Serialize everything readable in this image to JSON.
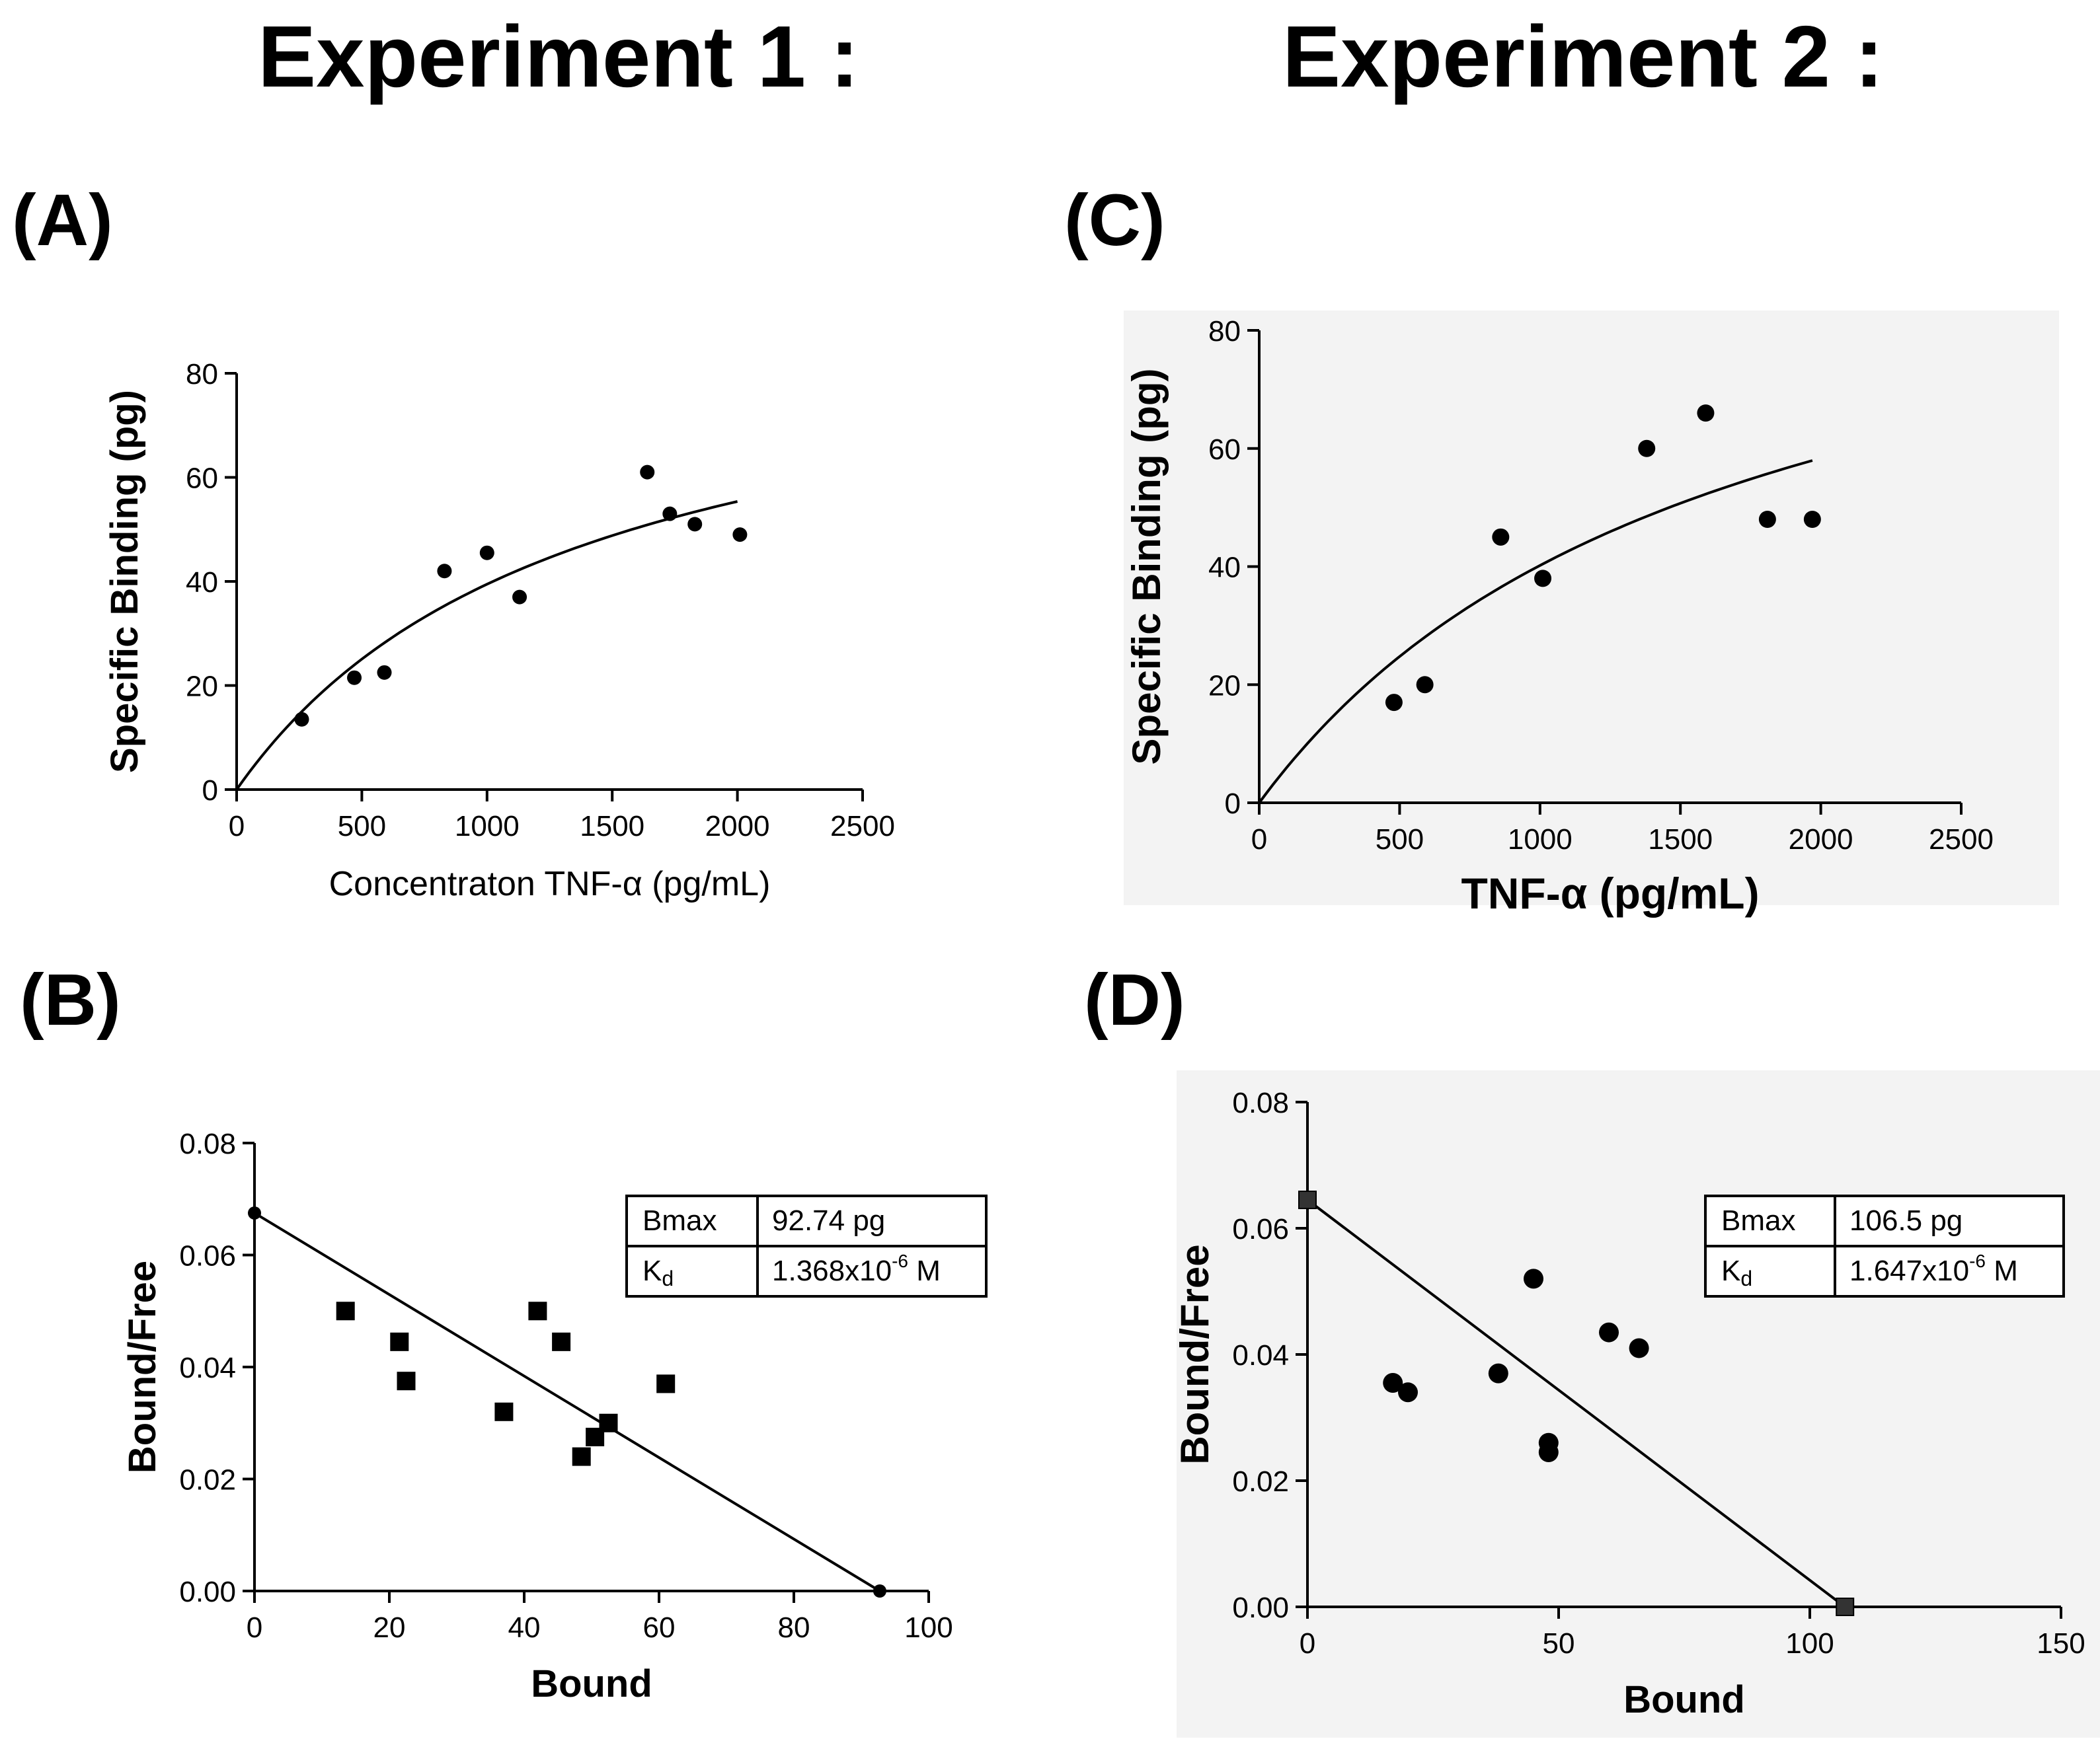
{
  "titles": {
    "exp1": "Experiment 1 :",
    "exp2": "Experiment 2 :"
  },
  "panel_letters": {
    "A": "(A)",
    "B": "(B)",
    "C": "(C)",
    "D": "(D)"
  },
  "colors": {
    "ink": "#000000",
    "panel_bg_exp2": "#f3f3f3",
    "background": "#ffffff"
  },
  "chart_data": [
    {
      "id": "A",
      "type": "scatter",
      "title": "",
      "xlabel": "Concentraton TNF-α (pg/mL)",
      "ylabel": "Specific Binding (pg)",
      "xlim": [
        0,
        2500
      ],
      "ylim": [
        0,
        80
      ],
      "xticks": [
        "0",
        "500",
        "1000",
        "1500",
        "2000",
        "2500"
      ],
      "yticks": [
        "0",
        "20",
        "40",
        "60",
        "80"
      ],
      "points": [
        [
          260,
          13.5
        ],
        [
          470,
          21.5
        ],
        [
          590,
          22.5
        ],
        [
          830,
          42
        ],
        [
          1000,
          45.5
        ],
        [
          1130,
          37
        ],
        [
          1640,
          61
        ],
        [
          1730,
          53
        ],
        [
          1830,
          51
        ],
        [
          2010,
          49
        ]
      ],
      "marker": "circle",
      "fit": {
        "type": "one-site",
        "bmax": 92.74,
        "kd": 1350,
        "x_range": [
          0,
          2000
        ]
      }
    },
    {
      "id": "B",
      "type": "scatter",
      "title": "",
      "xlabel": "Bound",
      "ylabel": "Bound/Free",
      "xlim": [
        0,
        100
      ],
      "ylim": [
        0,
        0.08
      ],
      "xticks": [
        "0",
        "20",
        "40",
        "60",
        "80",
        "100"
      ],
      "yticks": [
        "0.00",
        "0.02",
        "0.04",
        "0.06",
        "0.08"
      ],
      "points": [
        [
          13.5,
          0.05
        ],
        [
          21.5,
          0.0445
        ],
        [
          22.5,
          0.0375
        ],
        [
          37,
          0.032
        ],
        [
          42,
          0.05
        ],
        [
          45.5,
          0.0445
        ],
        [
          48.5,
          0.024
        ],
        [
          50.5,
          0.0275
        ],
        [
          52.5,
          0.03
        ],
        [
          61,
          0.037
        ]
      ],
      "marker": "square",
      "endpoints": [
        [
          0,
          0.0675
        ],
        [
          92.74,
          0.0
        ]
      ],
      "fit": {
        "type": "line",
        "x0": 0,
        "y0": 0.0675,
        "x1": 92.74,
        "y1": 0.0
      },
      "table": {
        "rows": [
          {
            "label": "Bmax",
            "value": "92.74 pg"
          },
          {
            "label": "Kd",
            "value": "1.368x10",
            "sup": "-6",
            "unit": " M"
          }
        ]
      }
    },
    {
      "id": "C",
      "type": "scatter",
      "title": "",
      "xlabel": "TNF-α (pg/mL)",
      "ylabel": "Specific Binding (pg)",
      "xlim": [
        0,
        2500
      ],
      "ylim": [
        0,
        80
      ],
      "xticks": [
        "0",
        "500",
        "1000",
        "1500",
        "2000",
        "2500"
      ],
      "yticks": [
        "0",
        "20",
        "40",
        "60",
        "80"
      ],
      "points": [
        [
          480,
          17
        ],
        [
          590,
          20
        ],
        [
          860,
          45
        ],
        [
          1010,
          38
        ],
        [
          1380,
          60
        ],
        [
          1590,
          66
        ],
        [
          1810,
          48
        ],
        [
          1970,
          48
        ]
      ],
      "marker": "circle",
      "fit": {
        "type": "one-site",
        "bmax": 106.5,
        "kd": 1650,
        "x_range": [
          0,
          1970
        ]
      }
    },
    {
      "id": "D",
      "type": "scatter",
      "title": "",
      "xlabel": "Bound",
      "ylabel": "Bound/Free",
      "xlim": [
        0,
        150
      ],
      "ylim": [
        0,
        0.08
      ],
      "xticks": [
        "0",
        "50",
        "100",
        "150"
      ],
      "yticks": [
        "0.00",
        "0.02",
        "0.04",
        "0.06",
        "0.08"
      ],
      "points": [
        [
          17,
          0.0355
        ],
        [
          20,
          0.034
        ],
        [
          38,
          0.037
        ],
        [
          45,
          0.052
        ],
        [
          48,
          0.026
        ],
        [
          48,
          0.0245
        ],
        [
          60,
          0.0435
        ],
        [
          66,
          0.041
        ]
      ],
      "marker": "circle",
      "endpoints": [
        [
          0,
          0.0645
        ],
        [
          107,
          0.0
        ]
      ],
      "fit": {
        "type": "line",
        "x0": 0,
        "y0": 0.0645,
        "x1": 107,
        "y1": 0.0
      },
      "table": {
        "rows": [
          {
            "label": "Bmax",
            "value": "106.5 pg"
          },
          {
            "label": "Kd",
            "value": "1.647x10",
            "sup": "-6",
            "unit": " M"
          }
        ]
      }
    }
  ]
}
